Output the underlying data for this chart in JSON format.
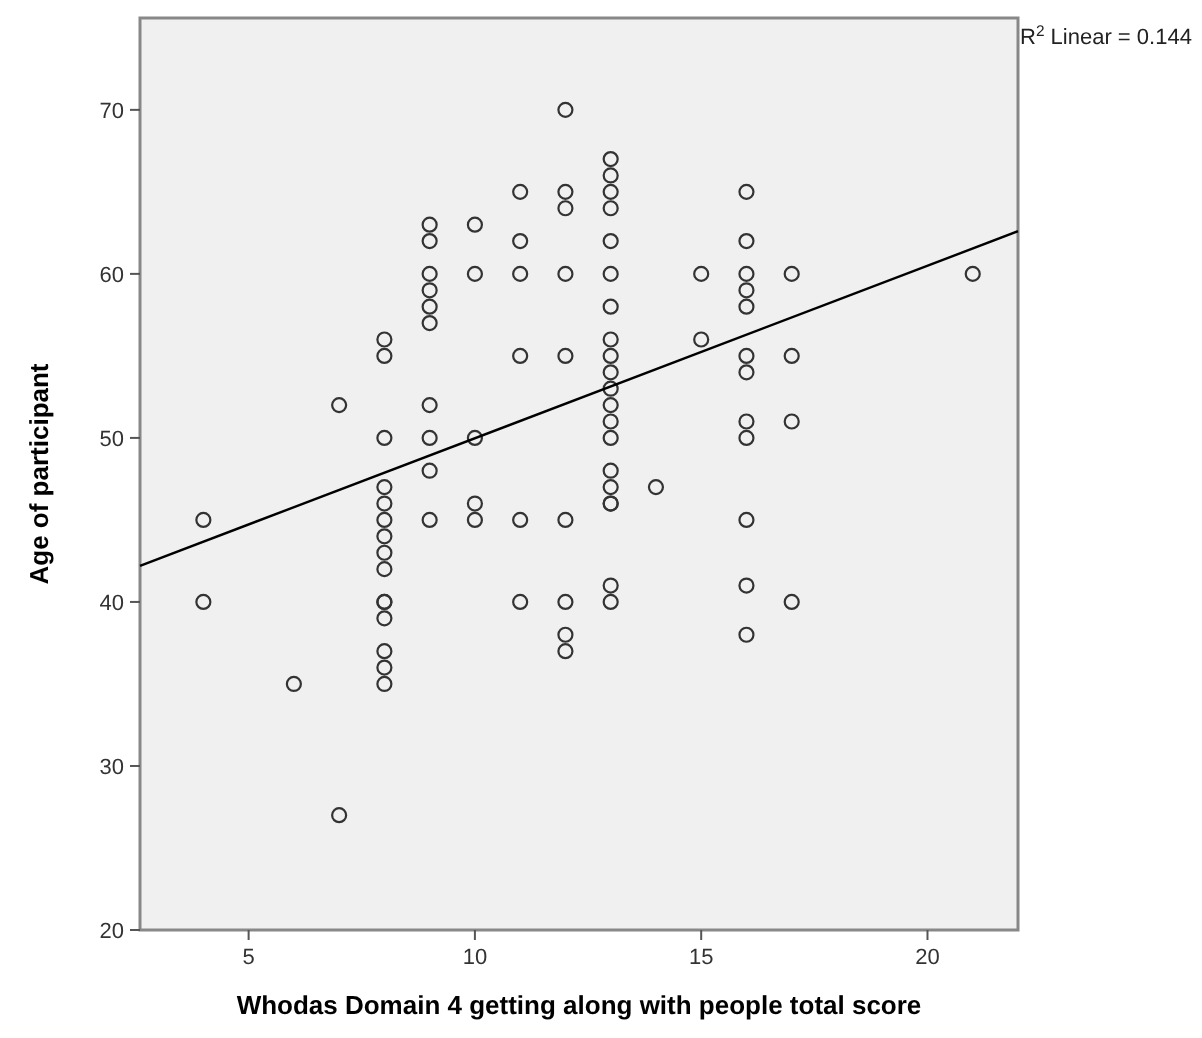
{
  "chart_data": {
    "type": "scatter",
    "xlabel": "Whodas Domain 4 getting along with people total score",
    "ylabel": "Age of participant",
    "xlim": [
      2.6,
      22
    ],
    "ylim": [
      20,
      75.6
    ],
    "xticks": [
      5,
      10,
      15,
      20
    ],
    "yticks": [
      20,
      30,
      40,
      50,
      60,
      70
    ],
    "grid": false,
    "annotations": [
      "R$^{2}$ Linear = 0.144"
    ],
    "series": [
      {
        "marker": "circle",
        "color": "#333333",
        "x": [
          4,
          4,
          6,
          7,
          7,
          8,
          8,
          8,
          8,
          8,
          8,
          8,
          8,
          8,
          8,
          8,
          8,
          8,
          8,
          8,
          9,
          9,
          9,
          9,
          9,
          9,
          9,
          9,
          9,
          9,
          10,
          10,
          10,
          10,
          10,
          11,
          11,
          11,
          11,
          11,
          11,
          12,
          12,
          12,
          12,
          12,
          12,
          12,
          12,
          12,
          13,
          13,
          13,
          13,
          13,
          13,
          13,
          13,
          13,
          13,
          13,
          13,
          13,
          13,
          13,
          13,
          13,
          13,
          13,
          13,
          14,
          15,
          15,
          16,
          16,
          16,
          16,
          16,
          16,
          16,
          16,
          16,
          16,
          16,
          16,
          17,
          17,
          17,
          17,
          21
        ],
        "values": [
          45,
          40,
          35,
          52,
          27,
          56,
          55,
          50,
          47,
          46,
          45,
          44,
          43,
          42,
          40,
          40,
          39,
          37,
          36,
          35,
          63,
          62,
          60,
          59,
          58,
          57,
          52,
          50,
          48,
          45,
          63,
          60,
          50,
          46,
          45,
          65,
          62,
          60,
          55,
          45,
          40,
          70,
          65,
          64,
          60,
          55,
          45,
          40,
          38,
          37,
          67,
          66,
          65,
          64,
          62,
          60,
          58,
          56,
          55,
          54,
          53,
          52,
          51,
          50,
          48,
          47,
          46,
          46,
          41,
          40,
          47,
          60,
          56,
          65,
          62,
          60,
          59,
          58,
          55,
          54,
          51,
          50,
          45,
          41,
          38,
          60,
          55,
          51,
          40,
          60
        ]
      },
      {
        "type": "line",
        "color": "#000000",
        "x": [
          2.6,
          22
        ],
        "values": [
          42.2,
          62.6
        ]
      }
    ]
  }
}
